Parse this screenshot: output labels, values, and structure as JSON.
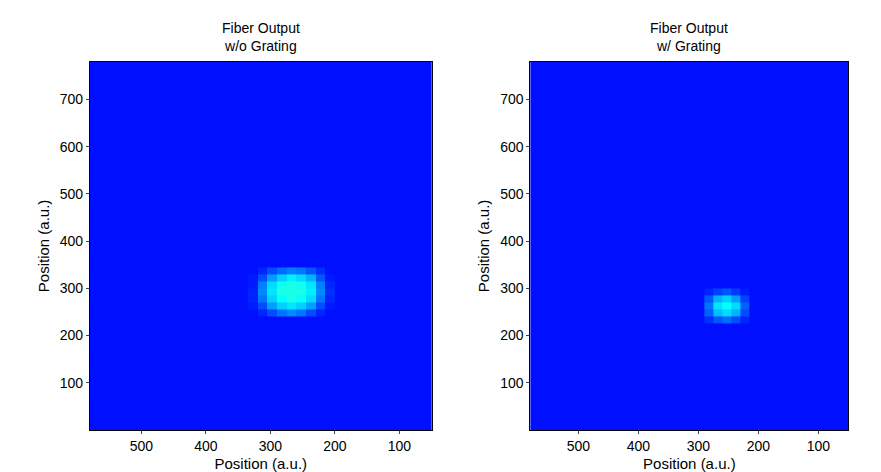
{
  "chart_data": [
    {
      "type": "heatmap",
      "title": "Fiber Output\nw/o Grating",
      "x_label": "Position (a.u.)",
      "y_label": "Position (a.u.)",
      "xlim": [
        580,
        50
      ],
      "ylim": [
        0,
        780
      ],
      "xticks": [
        500,
        400,
        300,
        200,
        100
      ],
      "yticks": [
        100,
        200,
        300,
        400,
        500,
        600,
        700
      ],
      "x_edges": [
        0,
        200,
        215,
        230,
        245,
        260,
        275,
        290,
        305,
        320,
        335,
        600
      ],
      "y_edges": [
        0,
        240,
        255,
        270,
        285,
        300,
        315,
        330,
        345,
        800
      ],
      "z": [
        [
          14,
          14,
          14,
          14,
          14,
          14,
          14,
          14,
          14,
          14,
          14
        ],
        [
          14,
          14,
          16,
          20,
          24,
          26,
          24,
          20,
          16,
          14,
          14
        ],
        [
          14,
          15,
          20,
          28,
          33,
          35,
          33,
          28,
          20,
          15,
          14
        ],
        [
          14,
          16,
          24,
          34,
          38,
          40,
          38,
          33,
          24,
          16,
          14
        ],
        [
          14,
          17,
          26,
          36,
          40,
          40,
          40,
          35,
          26,
          16,
          14
        ],
        [
          14,
          16,
          25,
          35,
          39,
          40,
          39,
          34,
          25,
          15,
          14
        ],
        [
          14,
          15,
          21,
          30,
          34,
          36,
          33,
          28,
          20,
          15,
          14
        ],
        [
          14,
          14,
          17,
          21,
          24,
          25,
          23,
          20,
          16,
          14,
          14
        ],
        [
          14,
          14,
          14,
          14,
          14,
          14,
          14,
          14,
          14,
          14,
          14
        ]
      ],
      "zlim": [
        0,
        100
      ]
    },
    {
      "type": "heatmap",
      "title": "Fiber Output\nw/ Grating",
      "x_label": "Position (a.u.)",
      "y_label": "Position (a.u.)",
      "xlim": [
        580,
        50
      ],
      "ylim": [
        0,
        780
      ],
      "xticks": [
        500,
        400,
        300,
        200,
        100
      ],
      "yticks": [
        100,
        200,
        300,
        400,
        500,
        600,
        700
      ],
      "x_edges": [
        0,
        215,
        230,
        245,
        260,
        275,
        290,
        600
      ],
      "y_edges": [
        0,
        225,
        240,
        255,
        270,
        285,
        300,
        800
      ],
      "z": [
        [
          14,
          14,
          14,
          14,
          14,
          14,
          14
        ],
        [
          14,
          16,
          20,
          23,
          21,
          17,
          14
        ],
        [
          14,
          20,
          30,
          34,
          31,
          22,
          14
        ],
        [
          14,
          22,
          34,
          38,
          35,
          24,
          14
        ],
        [
          14,
          19,
          28,
          33,
          30,
          21,
          14
        ],
        [
          14,
          15,
          18,
          21,
          19,
          16,
          14
        ],
        [
          14,
          14,
          14,
          14,
          14,
          14,
          14
        ]
      ],
      "zlim": [
        0,
        100
      ]
    }
  ]
}
